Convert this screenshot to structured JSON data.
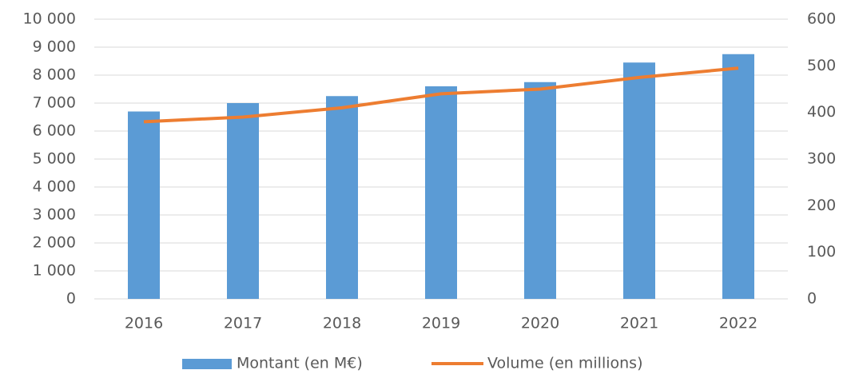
{
  "chart_data": {
    "type": "bar_line",
    "categories": [
      "2016",
      "2017",
      "2018",
      "2019",
      "2020",
      "2021",
      "2022"
    ],
    "series": [
      {
        "name": "Montant (en M€)",
        "type": "bar",
        "color": "#5b9bd5",
        "values": [
          6700,
          7000,
          7250,
          7600,
          7750,
          8450,
          8750
        ]
      },
      {
        "name": "Volume (en millions)",
        "type": "line",
        "axis": "y2",
        "color": "#ed7d31",
        "values": [
          380,
          390,
          410,
          440,
          450,
          475,
          495
        ]
      }
    ],
    "ylim": [
      0,
      10000
    ],
    "yticks": [
      0,
      {
        "value": 1000,
        "label": "1 000"
      },
      {
        "value": 2000,
        "label": "2 000"
      },
      {
        "value": 3000,
        "label": "3 000"
      },
      {
        "value": 4000,
        "label": "4 000"
      },
      {
        "value": 5000,
        "label": "5 000"
      },
      {
        "value": 6000,
        "label": "6 000"
      },
      {
        "value": 7000,
        "label": "7 000"
      },
      {
        "value": 8000,
        "label": "8 000"
      },
      {
        "value": 9000,
        "label": "9 000"
      },
      {
        "value": 10000,
        "label": "10 000"
      }
    ],
    "y2lim": [
      0,
      600
    ],
    "y2ticks": [
      0,
      100,
      200,
      300,
      400,
      500,
      600
    ],
    "grid": true,
    "legend": "bottom"
  }
}
